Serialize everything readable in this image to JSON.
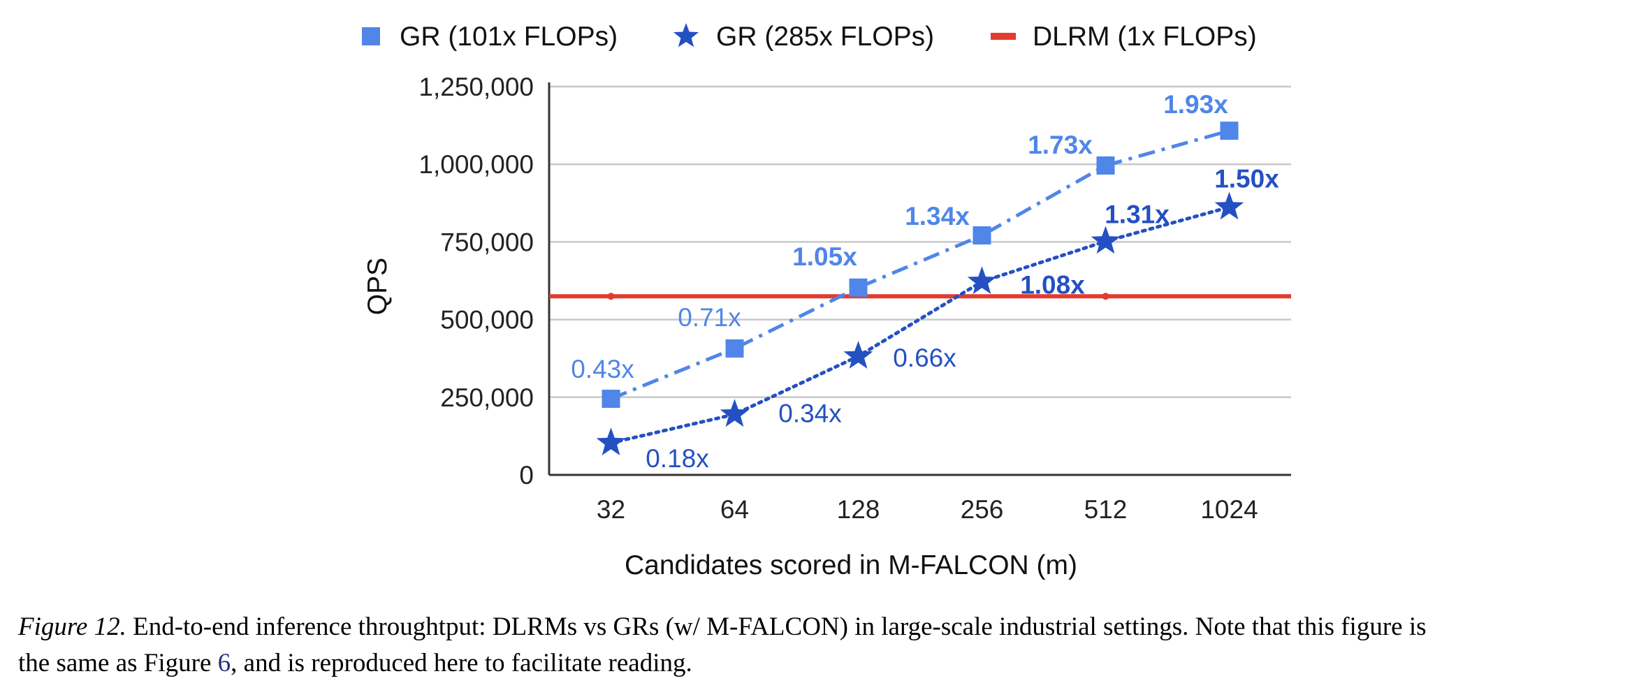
{
  "chart_data": {
    "type": "line",
    "title": "",
    "xlabel": "Candidates scored in M-FALCON (m)",
    "ylabel": "QPS",
    "categories": [
      "32",
      "64",
      "128",
      "256",
      "512",
      "1024"
    ],
    "y_ticks": [
      "0",
      "250,000",
      "500,000",
      "750,000",
      "1,000,000",
      "1,250,000"
    ],
    "ylim": [
      0,
      1250000
    ],
    "grid": true,
    "legend_position": "top",
    "series": [
      {
        "name": "GR (101x FLOPs)",
        "marker": "square",
        "line_style": "dash-dot",
        "color": "#4F86E8",
        "values": [
          245000,
          407000,
          603000,
          771000,
          996000,
          1108000
        ],
        "labels": [
          "0.43x",
          "0.71x",
          "1.05x",
          "1.34x",
          "1.73x",
          "1.93x"
        ]
      },
      {
        "name": "GR (285x FLOPs)",
        "marker": "star",
        "line_style": "dotted",
        "color": "#2450C2",
        "values": [
          103000,
          195000,
          382000,
          622000,
          752000,
          862000
        ],
        "labels": [
          "0.18x",
          "0.34x",
          "0.66x",
          "1.08x",
          "1.31x",
          "1.50x"
        ]
      },
      {
        "name": "DLRM (1x FLOPs)",
        "marker": "none",
        "line_style": "solid",
        "color": "#E33B2E",
        "values": [
          575000,
          575000,
          575000,
          575000,
          575000,
          575000
        ],
        "labels": []
      }
    ]
  },
  "caption": {
    "label": "Figure 12.",
    "text_line1": " End-to-end inference throughtput: DLRMs vs GRs (w/ M-FALCON) in large-scale industrial settings. Note that this figure is",
    "text_line2_a": "the same as Figure ",
    "figure_ref": "6",
    "text_line2_b": ", and is reproduced here to facilitate reading."
  }
}
